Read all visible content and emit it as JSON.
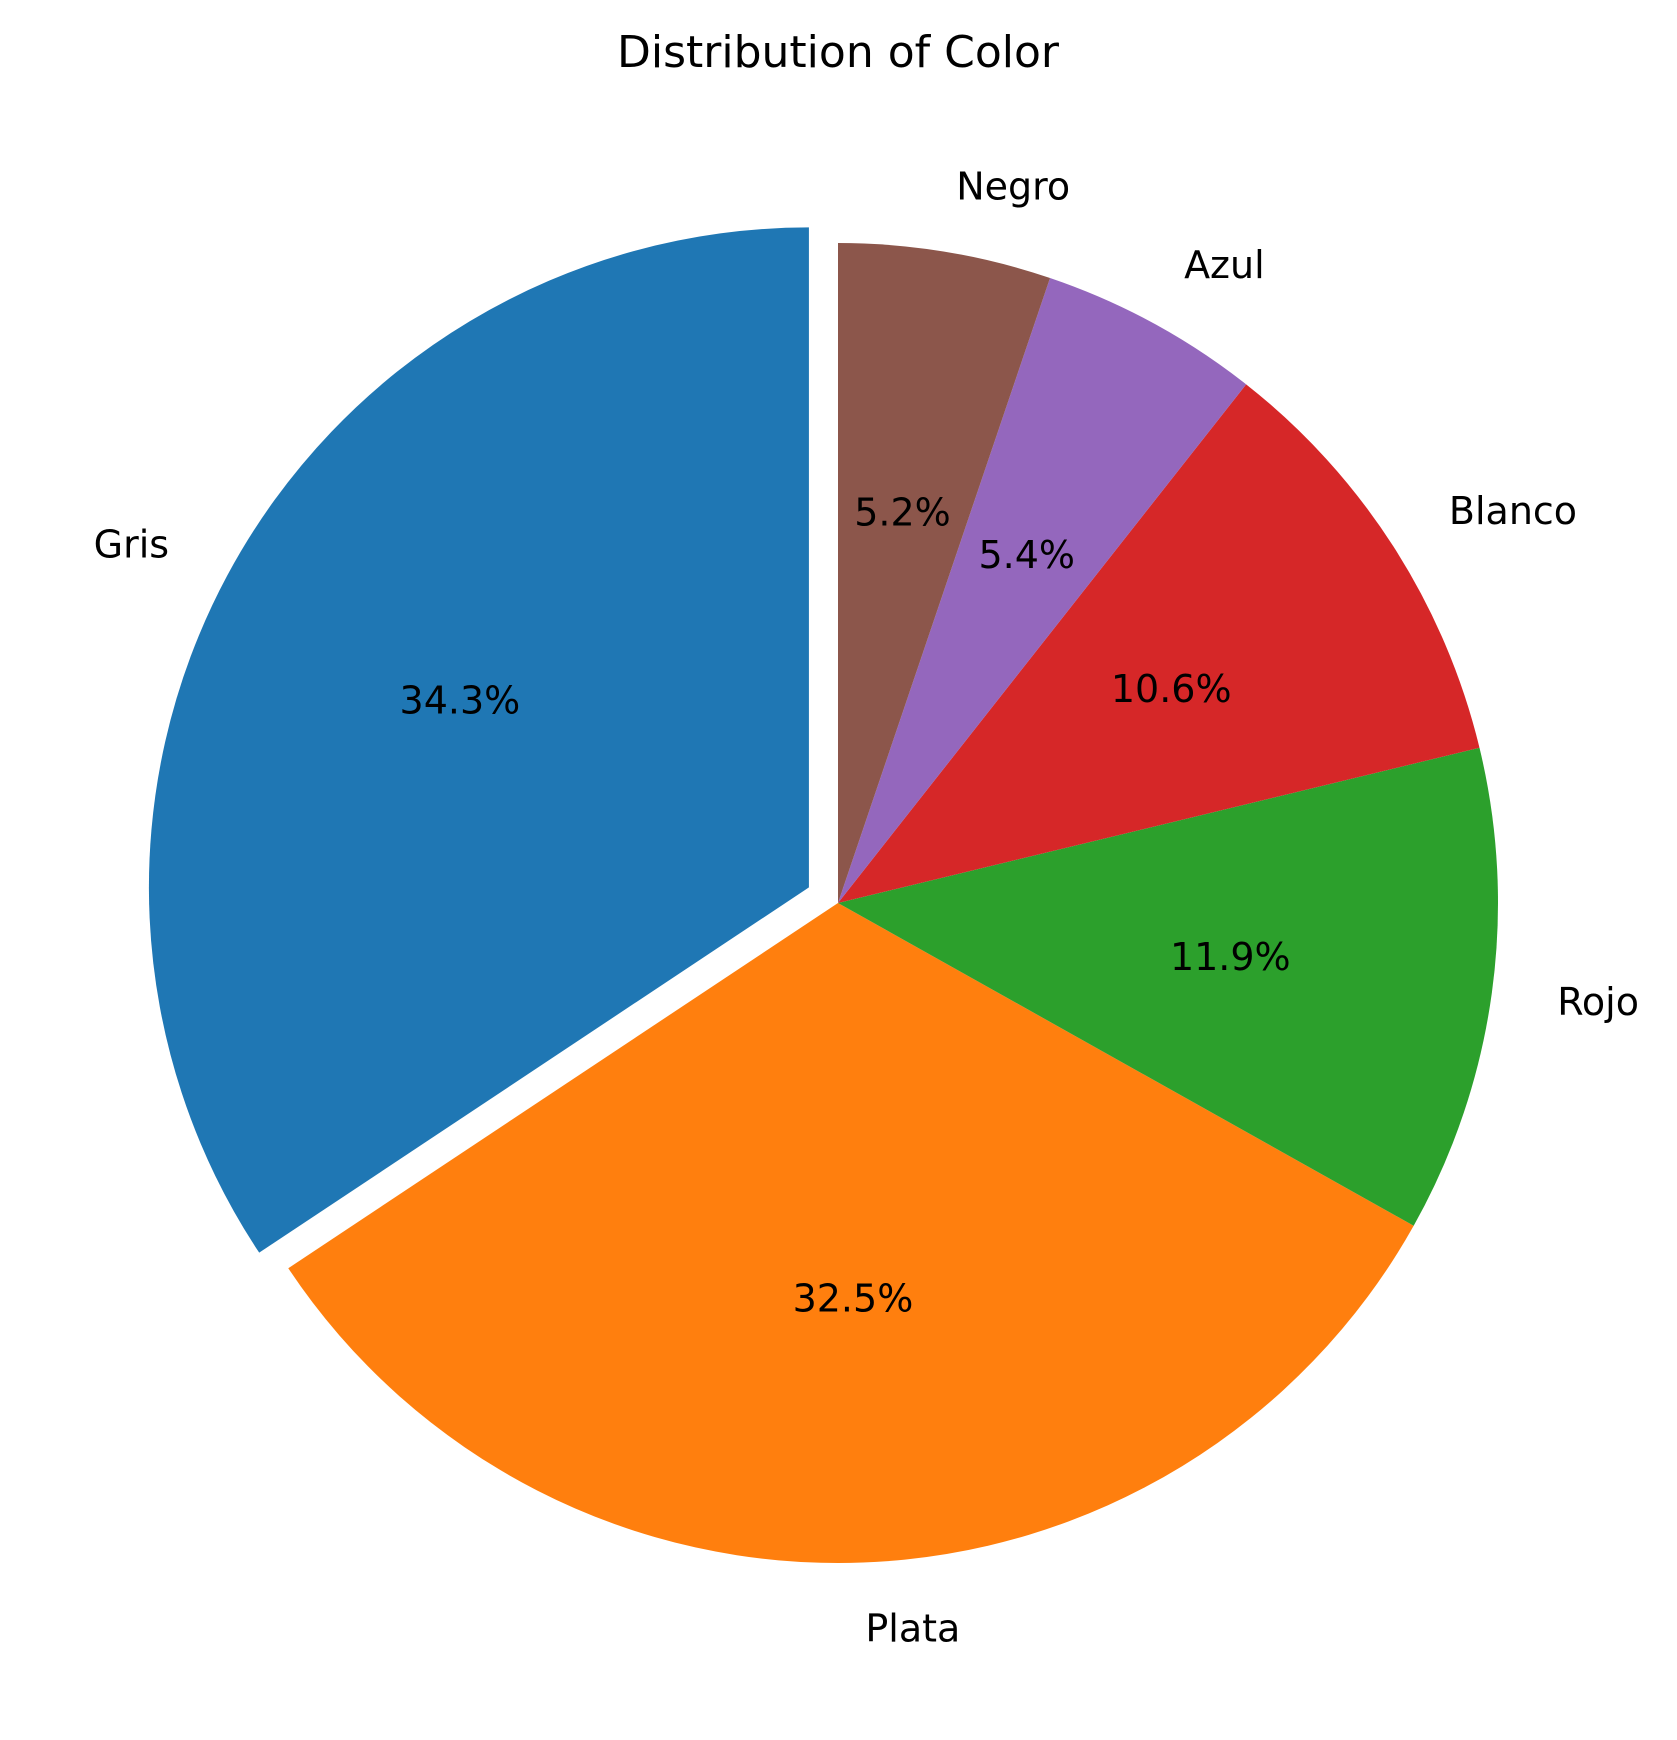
{
  "chart_data": {
    "type": "pie",
    "title": "Distribution of Color",
    "categories": [
      "Gris",
      "Plata",
      "Rojo",
      "Blanco",
      "Azul",
      "Negro"
    ],
    "values": [
      34.3,
      32.5,
      11.9,
      10.6,
      5.4,
      5.2
    ],
    "percent_labels": [
      "34.3%",
      "32.5%",
      "11.9%",
      "10.6%",
      "5.4%",
      "5.2%"
    ],
    "colors": [
      "#1f77b4",
      "#ff7f0e",
      "#2ca02c",
      "#d62728",
      "#9467bd",
      "#8c564b"
    ],
    "exploded": [
      "Gris"
    ],
    "start_angle": 90,
    "direction": "counterclockwise",
    "legend": "none"
  }
}
